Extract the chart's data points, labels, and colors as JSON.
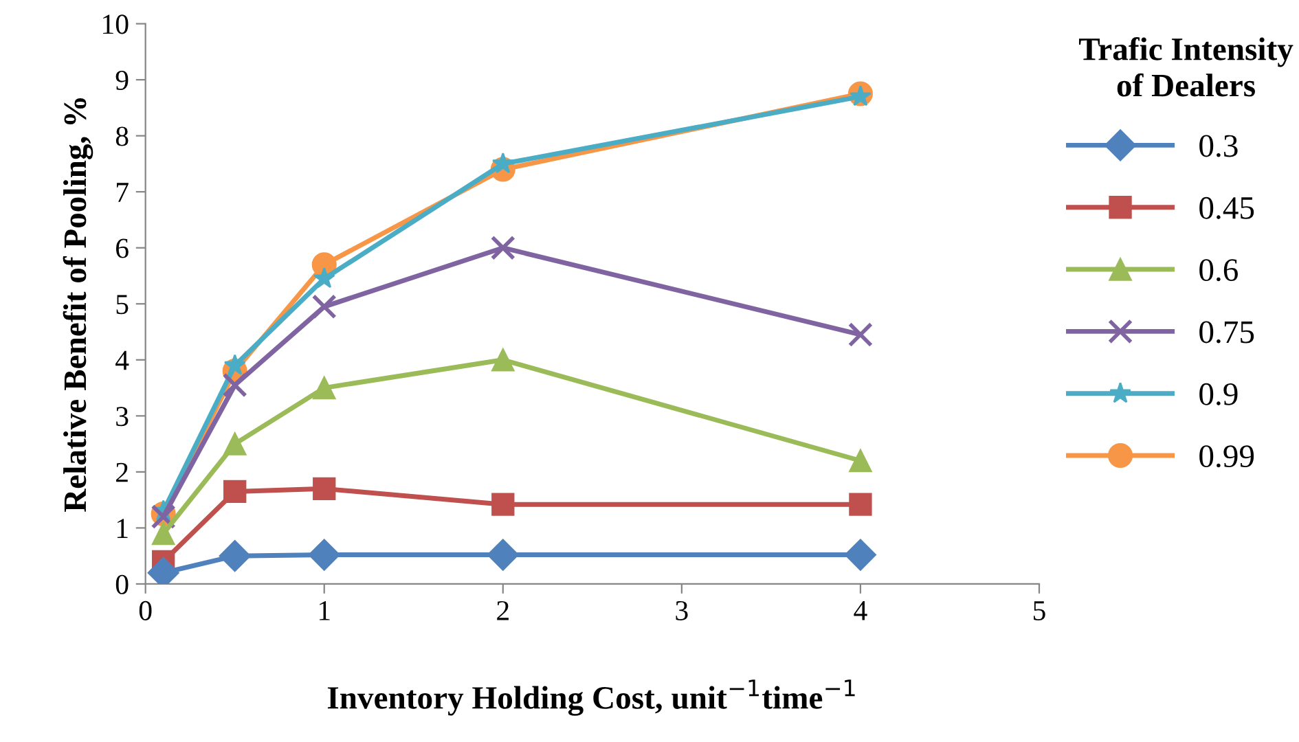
{
  "chart_data": {
    "type": "line",
    "xlabel": "Inventory Holding Cost, unit$^{−1}$time$^{−1}$",
    "ylabel": "Relative Benefit of Pooling, %",
    "legend_title": "Trafic Intensity of Dealers",
    "x": [
      0.1,
      0.5,
      1,
      2,
      4
    ],
    "series": [
      {
        "name": "0.3",
        "color": "#4f81bd",
        "marker": "diamond",
        "values": [
          0.2,
          0.5,
          0.52,
          0.52,
          0.52
        ]
      },
      {
        "name": "0.45",
        "color": "#c0504d",
        "marker": "square",
        "values": [
          0.4,
          1.65,
          1.7,
          1.42,
          1.42
        ]
      },
      {
        "name": "0.6",
        "color": "#9bbb59",
        "marker": "triangle",
        "values": [
          0.9,
          2.5,
          3.5,
          4.0,
          2.2
        ]
      },
      {
        "name": "0.75",
        "color": "#8064a2",
        "marker": "cross",
        "values": [
          1.2,
          3.55,
          4.95,
          6.0,
          4.45
        ]
      },
      {
        "name": "0.9",
        "color": "#4bacc6",
        "marker": "star",
        "values": [
          1.3,
          3.9,
          5.45,
          7.5,
          8.7
        ]
      },
      {
        "name": "0.99",
        "color": "#f79646",
        "marker": "circle",
        "values": [
          1.25,
          3.8,
          5.7,
          7.4,
          8.75
        ]
      }
    ],
    "xlim": [
      0,
      5
    ],
    "xticks": [
      0,
      1,
      2,
      3,
      4,
      5
    ],
    "ylim": [
      0,
      10
    ],
    "yticks": [
      0,
      1,
      2,
      3,
      4,
      5,
      6,
      7,
      8,
      9,
      10
    ],
    "grid": false,
    "legend": "right",
    "line_style": "solid"
  }
}
